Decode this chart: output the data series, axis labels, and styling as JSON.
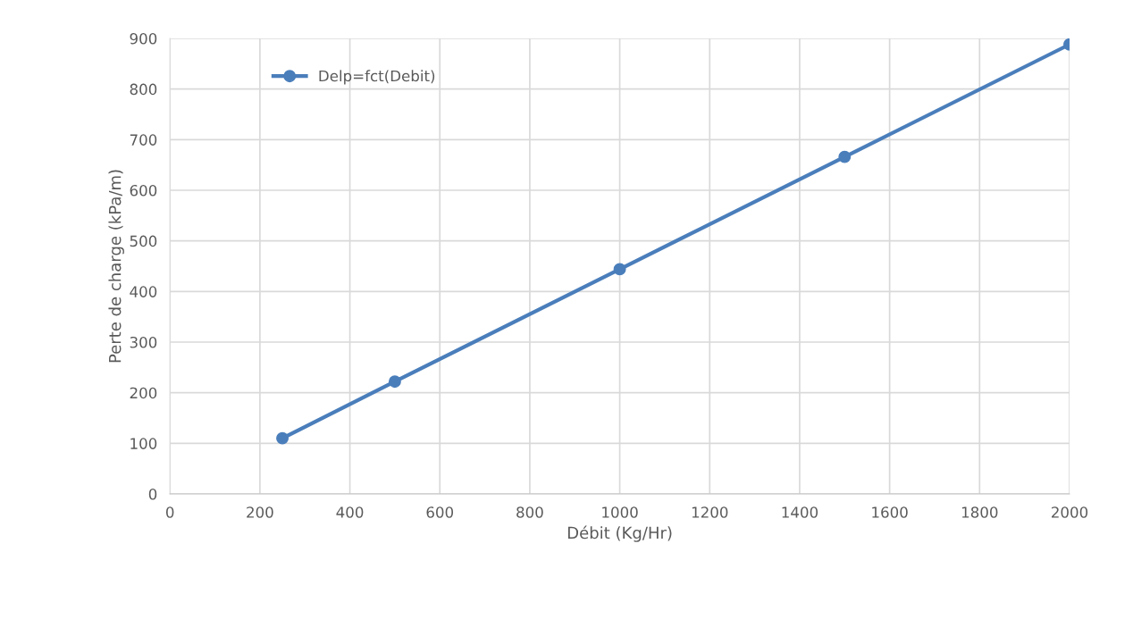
{
  "chart_data": {
    "type": "line",
    "xlabel": "Débit (Kg/Hr)",
    "ylabel": "Perte de charge (kPa/m)",
    "x": [
      250,
      500,
      1000,
      1500,
      2000
    ],
    "series": [
      {
        "name": "Delp=fct(Debit)",
        "color": "#4a7ebb",
        "values": [
          110,
          222,
          444,
          666,
          888
        ]
      }
    ],
    "xlim": [
      0,
      2000
    ],
    "xticks": [
      0,
      200,
      400,
      600,
      800,
      1000,
      1200,
      1400,
      1600,
      1800,
      2000
    ],
    "ylim": [
      0,
      900
    ],
    "yticks": [
      0,
      100,
      200,
      300,
      400,
      500,
      600,
      700,
      800,
      900
    ],
    "grid": true,
    "legend": "top left",
    "marker": "circle",
    "line_style": "solid"
  }
}
